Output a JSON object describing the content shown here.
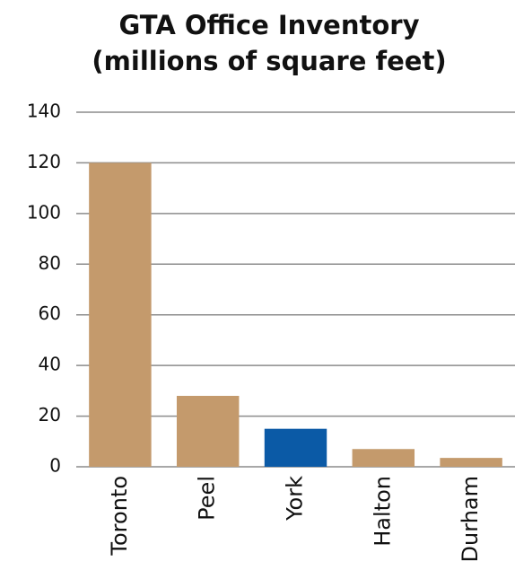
{
  "chart_data": {
    "type": "bar",
    "title": [
      "GTA Office Inventory",
      "(millions of square feet)"
    ],
    "categories": [
      "Toronto",
      "Peel",
      "York",
      "Halton",
      "Durham"
    ],
    "values": [
      120,
      28,
      15,
      7,
      3.5
    ],
    "colors": [
      "#c49a6c",
      "#c49a6c",
      "#0b5aa6",
      "#c49a6c",
      "#c49a6c"
    ],
    "ylim": [
      0,
      140
    ],
    "yticks": [
      0,
      20,
      40,
      60,
      80,
      100,
      120,
      140
    ],
    "grid": true
  }
}
